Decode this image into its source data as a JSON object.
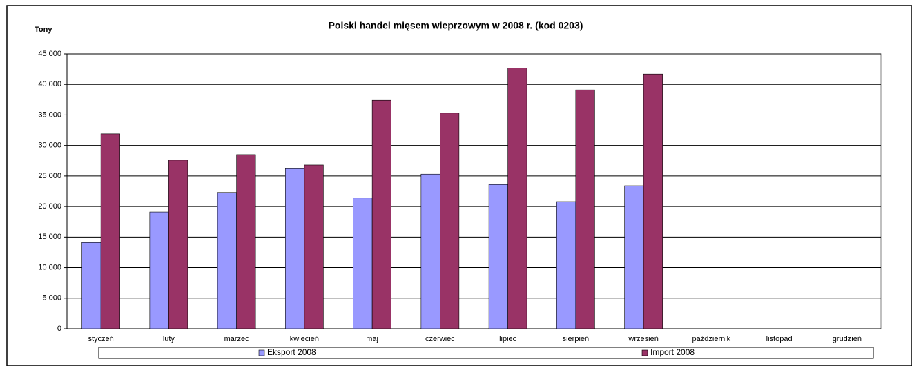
{
  "chart_data": {
    "type": "bar",
    "title": "Polski handel mięsem wieprzowym w 2008 r. (kod 0203)",
    "y_label": "Tony",
    "categories": [
      "styczeń",
      "luty",
      "marzec",
      "kwiecień",
      "maj",
      "czerwiec",
      "lipiec",
      "sierpień",
      "wrzesień",
      "październik",
      "listopad",
      "grudzień"
    ],
    "series": [
      {
        "name": "Eksport 2008",
        "color": "#9999ff",
        "values": [
          14100,
          19100,
          22300,
          26200,
          21400,
          25300,
          23600,
          20800,
          23400,
          null,
          null,
          null
        ]
      },
      {
        "name": "Import 2008",
        "color": "#993366",
        "values": [
          31900,
          27600,
          28500,
          26800,
          37400,
          35300,
          42700,
          39100,
          41700,
          null,
          null,
          null
        ]
      }
    ],
    "ylim": [
      0,
      45000
    ],
    "yticks": [
      0,
      {
        "value": 5000,
        "label": "5 000"
      },
      {
        "value": 10000,
        "label": "10 000"
      },
      {
        "value": 15000,
        "label": "15 000"
      },
      {
        "value": 20000,
        "label": "20 000"
      },
      {
        "value": 25000,
        "label": "25 000"
      },
      {
        "value": 30000,
        "label": "30 000"
      },
      {
        "value": 35000,
        "label": "35 000"
      },
      {
        "value": 40000,
        "label": "40 000"
      },
      {
        "value": 45000,
        "label": "45 000"
      }
    ],
    "grid": true,
    "legend": "bottom"
  }
}
